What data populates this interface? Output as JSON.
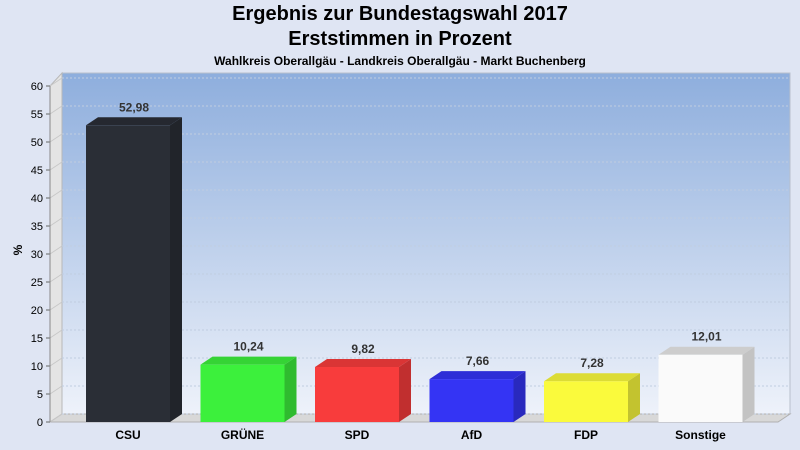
{
  "chart_data": {
    "type": "bar",
    "title": "Ergebnis zur Bundestagswahl 2017",
    "subtitle": "Erststimmen in Prozent",
    "subsubtitle": "Wahlkreis Oberallgäu - Landkreis Oberallgäu - Markt Buchenberg",
    "xlabel": "",
    "ylabel": "%",
    "ylim": [
      0,
      60
    ],
    "yticks": [
      0,
      5,
      10,
      15,
      20,
      25,
      30,
      35,
      40,
      45,
      50,
      55,
      60
    ],
    "grid": true,
    "categories": [
      "CSU",
      "GRÜNE",
      "SPD",
      "AfD",
      "FDP",
      "Sonstige"
    ],
    "values": [
      52.98,
      10.24,
      9.82,
      7.66,
      7.28,
      12.01
    ],
    "labels": [
      "52,98",
      "10,24",
      "9,82",
      "7,66",
      "7,28",
      "12,01"
    ],
    "colors": [
      "#2a2e36",
      "#3cf03c",
      "#f83c3c",
      "#3434f4",
      "#fafa3c",
      "#fafafa"
    ]
  }
}
